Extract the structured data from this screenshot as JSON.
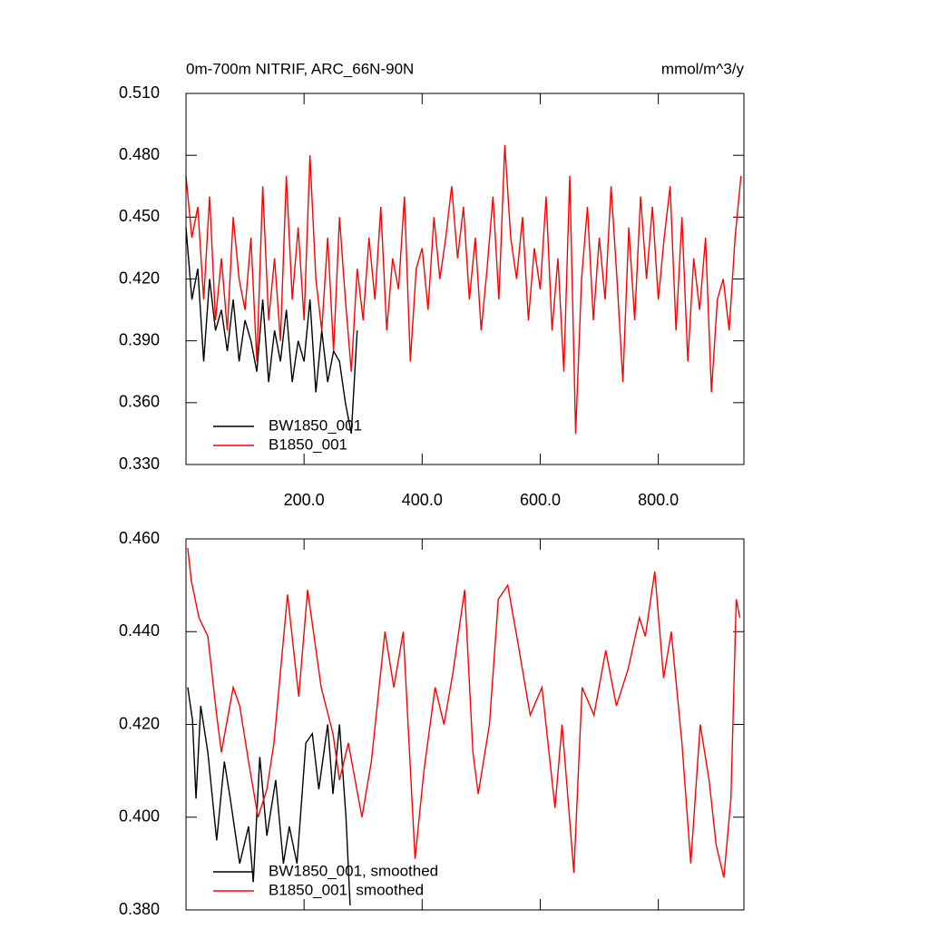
{
  "chart_data": [
    {
      "type": "line",
      "title": "0m-700m NITRIF, ARC_66N-90N",
      "units": "mmol/m^3/y",
      "xlim": [
        0,
        945
      ],
      "ylim": [
        0.33,
        0.51
      ],
      "xticks": [
        {
          "value": 200,
          "label": "200.0"
        },
        {
          "value": 400,
          "label": "400.0"
        },
        {
          "value": 600,
          "label": "600.0"
        },
        {
          "value": 800,
          "label": "800.0"
        }
      ],
      "yticks": [
        {
          "value": 0.33,
          "label": "0.330"
        },
        {
          "value": 0.36,
          "label": "0.360"
        },
        {
          "value": 0.39,
          "label": "0.390"
        },
        {
          "value": 0.42,
          "label": "0.420"
        },
        {
          "value": 0.45,
          "label": "0.450"
        },
        {
          "value": 0.48,
          "label": "0.480"
        },
        {
          "value": 0.51,
          "label": "0.510"
        }
      ],
      "legend": "lower left",
      "series": [
        {
          "name": "BW1850_001",
          "color": "#000000",
          "x": [
            0,
            10,
            20,
            30,
            40,
            50,
            60,
            70,
            80,
            90,
            100,
            110,
            120,
            130,
            140,
            150,
            160,
            170,
            180,
            190,
            200,
            210,
            220,
            230,
            240,
            250,
            260,
            270,
            280,
            290
          ],
          "values": [
            0.445,
            0.41,
            0.425,
            0.38,
            0.42,
            0.395,
            0.405,
            0.385,
            0.41,
            0.38,
            0.4,
            0.39,
            0.375,
            0.41,
            0.37,
            0.395,
            0.38,
            0.405,
            0.37,
            0.39,
            0.38,
            0.41,
            0.365,
            0.395,
            0.37,
            0.385,
            0.38,
            0.36,
            0.345,
            0.395
          ]
        },
        {
          "name": "B1850_001",
          "color": "#ff0000",
          "x": [
            0,
            10,
            20,
            30,
            40,
            50,
            60,
            70,
            80,
            90,
            100,
            110,
            120,
            130,
            140,
            150,
            160,
            170,
            180,
            190,
            200,
            210,
            220,
            230,
            240,
            250,
            260,
            270,
            280,
            290,
            300,
            310,
            320,
            330,
            340,
            350,
            360,
            370,
            380,
            390,
            400,
            410,
            420,
            430,
            440,
            450,
            460,
            470,
            480,
            490,
            500,
            510,
            520,
            530,
            540,
            550,
            560,
            570,
            580,
            590,
            600,
            610,
            620,
            630,
            640,
            650,
            660,
            670,
            680,
            690,
            700,
            710,
            720,
            730,
            740,
            750,
            760,
            770,
            780,
            790,
            800,
            810,
            820,
            830,
            840,
            850,
            860,
            870,
            880,
            890,
            900,
            910,
            920,
            930,
            940
          ],
          "values": [
            0.47,
            0.44,
            0.455,
            0.41,
            0.46,
            0.4,
            0.43,
            0.395,
            0.45,
            0.42,
            0.405,
            0.44,
            0.38,
            0.465,
            0.4,
            0.43,
            0.39,
            0.47,
            0.41,
            0.445,
            0.4,
            0.48,
            0.42,
            0.395,
            0.44,
            0.385,
            0.45,
            0.41,
            0.375,
            0.425,
            0.4,
            0.44,
            0.41,
            0.455,
            0.395,
            0.43,
            0.415,
            0.46,
            0.38,
            0.425,
            0.435,
            0.405,
            0.45,
            0.42,
            0.44,
            0.465,
            0.43,
            0.455,
            0.41,
            0.44,
            0.395,
            0.425,
            0.46,
            0.41,
            0.485,
            0.44,
            0.42,
            0.45,
            0.4,
            0.435,
            0.415,
            0.46,
            0.395,
            0.43,
            0.375,
            0.47,
            0.345,
            0.42,
            0.455,
            0.4,
            0.44,
            0.41,
            0.465,
            0.42,
            0.37,
            0.445,
            0.4,
            0.46,
            0.42,
            0.455,
            0.41,
            0.44,
            0.465,
            0.395,
            0.45,
            0.38,
            0.43,
            0.405,
            0.44,
            0.365,
            0.41,
            0.42,
            0.395,
            0.44,
            0.47
          ]
        }
      ]
    },
    {
      "type": "line",
      "xlim": [
        0,
        945
      ],
      "ylim": [
        0.38,
        0.46
      ],
      "xticks": [
        200,
        400,
        600,
        800
      ],
      "show_xtick_labels": false,
      "yticks": [
        {
          "value": 0.38,
          "label": "0.380"
        },
        {
          "value": 0.4,
          "label": "0.400"
        },
        {
          "value": 0.42,
          "label": "0.420"
        },
        {
          "value": 0.44,
          "label": "0.440"
        },
        {
          "value": 0.46,
          "label": "0.460"
        }
      ],
      "legend": "lower left",
      "series": [
        {
          "name": "BW1850_001, smoothed",
          "color": "#000000",
          "x": [
            3,
            11,
            17,
            25,
            37,
            52,
            65,
            75,
            91,
            106,
            114,
            125,
            137,
            152,
            165,
            175,
            188,
            203,
            214,
            225,
            240,
            249,
            260,
            271,
            278
          ],
          "values": [
            0.428,
            0.421,
            0.404,
            0.424,
            0.414,
            0.395,
            0.412,
            0.404,
            0.39,
            0.398,
            0.386,
            0.413,
            0.396,
            0.408,
            0.39,
            0.398,
            0.39,
            0.416,
            0.418,
            0.406,
            0.42,
            0.405,
            0.42,
            0.4,
            0.381
          ]
        },
        {
          "name": "B1850_001, smoothed",
          "color": "#ff0000",
          "x": [
            3,
            9,
            22,
            37,
            52,
            60,
            80,
            91,
            106,
            122,
            137,
            149,
            172,
            191,
            206,
            229,
            249,
            260,
            275,
            298,
            314,
            337,
            352,
            368,
            388,
            403,
            422,
            437,
            452,
            472,
            486,
            495,
            514,
            529,
            545,
            563,
            583,
            603,
            625,
            637,
            657,
            671,
            691,
            711,
            729,
            749,
            768,
            778,
            794,
            809,
            822,
            840,
            855,
            871,
            886,
            898,
            911,
            923,
            932,
            938
          ],
          "values": [
            0.458,
            0.451,
            0.443,
            0.439,
            0.422,
            0.414,
            0.428,
            0.424,
            0.412,
            0.4,
            0.406,
            0.416,
            0.448,
            0.426,
            0.449,
            0.428,
            0.418,
            0.408,
            0.416,
            0.4,
            0.412,
            0.44,
            0.428,
            0.44,
            0.391,
            0.41,
            0.428,
            0.42,
            0.431,
            0.449,
            0.414,
            0.405,
            0.42,
            0.447,
            0.45,
            0.437,
            0.422,
            0.428,
            0.402,
            0.42,
            0.388,
            0.428,
            0.422,
            0.436,
            0.424,
            0.432,
            0.443,
            0.439,
            0.453,
            0.43,
            0.44,
            0.416,
            0.39,
            0.42,
            0.408,
            0.394,
            0.387,
            0.404,
            0.447,
            0.443
          ]
        }
      ]
    }
  ]
}
